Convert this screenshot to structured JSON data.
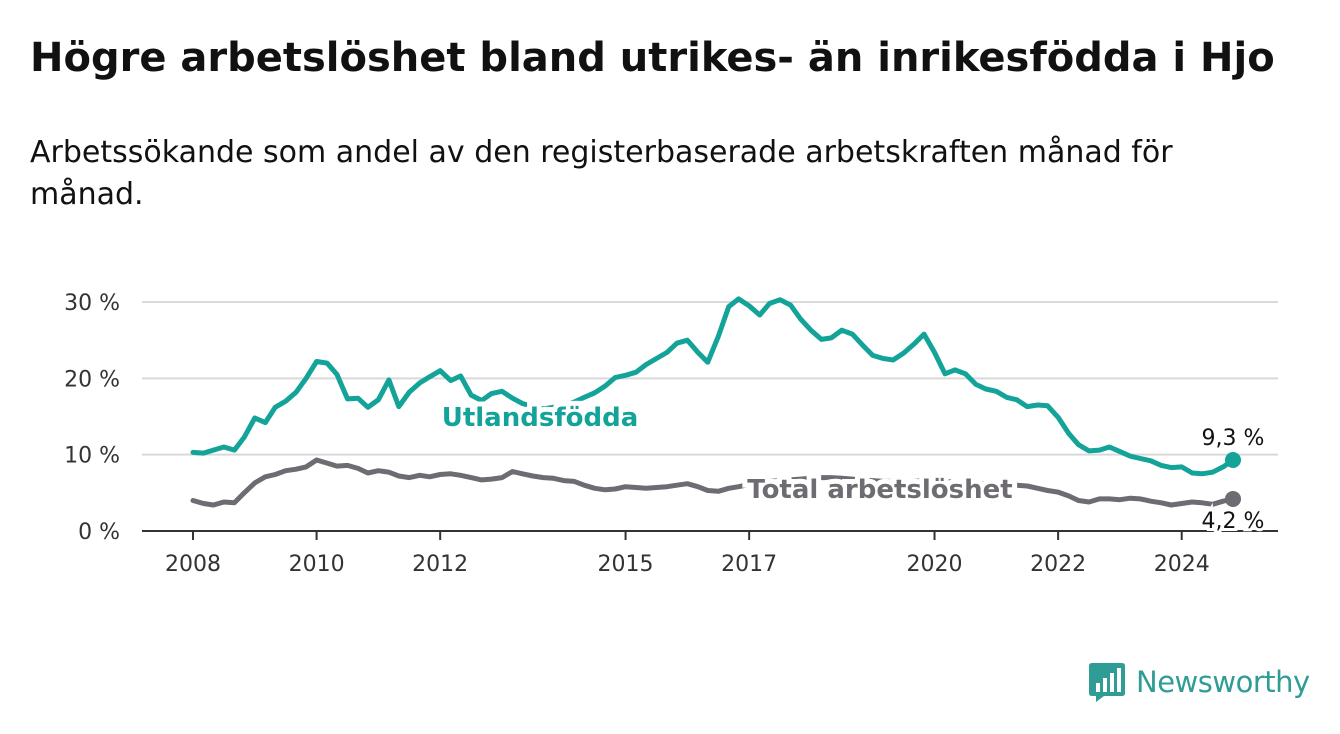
{
  "title": "Högre arbetslöshet bland utrikes- än inrikesfödda i Hjo",
  "subtitle": "Arbetssökande som andel av den registerbaserade arbetskraften månad för månad.",
  "brand": {
    "name": "Newsworthy",
    "color": "#2f9c96",
    "icon": "bar-chart-speech-icon"
  },
  "colors": {
    "foreign": "#13a399",
    "total": "#6e6b73",
    "grid": "#d9d9d9",
    "axis": "#333333"
  },
  "chart_data": {
    "type": "line",
    "title": "Högre arbetslöshet bland utrikes- än inrikesfödda i Hjo",
    "subtitle": "Arbetssökande som andel av den registerbaserade arbetskraften månad för månad.",
    "xlabel": "",
    "ylabel": "",
    "xlim": [
      2008,
      2025.75
    ],
    "ylim": [
      0,
      30
    ],
    "yticks": [
      0,
      10,
      20,
      30
    ],
    "ytick_labels": [
      "0 %",
      "10 %",
      "20 %",
      "30 %"
    ],
    "xticks": [
      2008,
      2010,
      2012,
      2015,
      2017,
      2020,
      2022,
      2024
    ],
    "xtick_labels": [
      "2008",
      "2010",
      "2012",
      "2015",
      "2017",
      "2020",
      "2022",
      "2024"
    ],
    "grid": "horizontal",
    "legend": "none (direct labels)",
    "series": [
      {
        "name": "Utlandsfödda",
        "color": "#13a399",
        "end_label": "9,3 %",
        "x": [
          2008.0,
          2008.17,
          2008.33,
          2008.5,
          2008.67,
          2008.83,
          2009.0,
          2009.17,
          2009.33,
          2009.5,
          2009.67,
          2009.83,
          2010.0,
          2010.17,
          2010.33,
          2010.5,
          2010.67,
          2010.83,
          2011.0,
          2011.17,
          2011.33,
          2011.5,
          2011.67,
          2011.83,
          2012.0,
          2012.17,
          2012.33,
          2012.5,
          2012.67,
          2012.83,
          2013.0,
          2013.17,
          2013.33,
          2013.5,
          2013.67,
          2013.83,
          2014.0,
          2014.17,
          2014.33,
          2014.5,
          2014.67,
          2014.83,
          2015.0,
          2015.17,
          2015.33,
          2015.5,
          2015.67,
          2015.83,
          2016.0,
          2016.17,
          2016.33,
          2016.5,
          2016.67,
          2016.83,
          2017.0,
          2017.17,
          2017.33,
          2017.5,
          2017.67,
          2017.83,
          2018.0,
          2018.17,
          2018.33,
          2018.5,
          2018.67,
          2018.83,
          2019.0,
          2019.17,
          2019.33,
          2019.5,
          2019.67,
          2019.83,
          2020.0,
          2020.17,
          2020.33,
          2020.5,
          2020.67,
          2020.83,
          2021.0,
          2021.17,
          2021.33,
          2021.5,
          2021.67,
          2021.83,
          2022.0,
          2022.17,
          2022.33,
          2022.5,
          2022.67,
          2022.83,
          2023.0,
          2023.17,
          2023.33,
          2023.5,
          2023.67,
          2023.83,
          2024.0,
          2024.17,
          2024.33,
          2024.5,
          2024.67,
          2024.83
        ],
        "values": [
          10.3,
          10.2,
          10.6,
          11.0,
          10.6,
          12.3,
          14.8,
          14.2,
          16.2,
          17.0,
          18.2,
          20.0,
          22.2,
          22.0,
          20.5,
          17.3,
          17.4,
          16.2,
          17.2,
          19.8,
          16.3,
          18.2,
          19.4,
          20.2,
          21.0,
          19.7,
          20.3,
          17.8,
          17.1,
          18.0,
          18.3,
          17.4,
          16.7,
          16.3,
          16.0,
          16.2,
          16.4,
          16.9,
          17.5,
          18.1,
          19.0,
          20.1,
          20.4,
          20.8,
          21.8,
          22.6,
          23.4,
          24.6,
          25.0,
          23.4,
          22.1,
          25.5,
          29.4,
          30.4,
          29.5,
          28.3,
          29.8,
          30.3,
          29.6,
          27.8,
          26.3,
          25.1,
          25.3,
          26.3,
          25.8,
          24.4,
          23.0,
          22.6,
          22.4,
          23.3,
          24.5,
          25.8,
          23.4,
          20.6,
          21.1,
          20.6,
          19.2,
          18.6,
          18.3,
          17.5,
          17.2,
          16.3,
          16.5,
          16.4,
          14.9,
          12.8,
          11.3,
          10.5,
          10.6,
          11.0,
          10.4,
          9.8,
          9.5,
          9.2,
          8.6,
          8.3,
          8.4,
          7.6,
          7.5,
          7.7,
          8.4,
          9.3
        ]
      },
      {
        "name": "Total arbetslöshet",
        "color": "#6e6b73",
        "end_label": "4,2 %",
        "x": [
          2008.0,
          2008.17,
          2008.33,
          2008.5,
          2008.67,
          2008.83,
          2009.0,
          2009.17,
          2009.33,
          2009.5,
          2009.67,
          2009.83,
          2010.0,
          2010.17,
          2010.33,
          2010.5,
          2010.67,
          2010.83,
          2011.0,
          2011.17,
          2011.33,
          2011.5,
          2011.67,
          2011.83,
          2012.0,
          2012.17,
          2012.33,
          2012.5,
          2012.67,
          2012.83,
          2013.0,
          2013.17,
          2013.33,
          2013.5,
          2013.67,
          2013.83,
          2014.0,
          2014.17,
          2014.33,
          2014.5,
          2014.67,
          2014.83,
          2015.0,
          2015.17,
          2015.33,
          2015.5,
          2015.67,
          2015.83,
          2016.0,
          2016.17,
          2016.33,
          2016.5,
          2016.67,
          2016.83,
          2017.0,
          2017.17,
          2017.33,
          2017.5,
          2017.67,
          2017.83,
          2018.0,
          2018.17,
          2018.33,
          2018.5,
          2018.67,
          2018.83,
          2019.0,
          2019.17,
          2019.33,
          2019.5,
          2019.67,
          2019.83,
          2020.0,
          2020.17,
          2020.33,
          2020.5,
          2020.67,
          2020.83,
          2021.0,
          2021.17,
          2021.33,
          2021.5,
          2021.67,
          2021.83,
          2022.0,
          2022.17,
          2022.33,
          2022.5,
          2022.67,
          2022.83,
          2023.0,
          2023.17,
          2023.33,
          2023.5,
          2023.67,
          2023.83,
          2024.0,
          2024.17,
          2024.33,
          2024.5,
          2024.67,
          2024.83
        ],
        "values": [
          4.0,
          3.6,
          3.4,
          3.8,
          3.7,
          5.0,
          6.3,
          7.1,
          7.4,
          7.9,
          8.1,
          8.4,
          9.3,
          8.9,
          8.5,
          8.6,
          8.2,
          7.6,
          7.9,
          7.7,
          7.2,
          7.0,
          7.3,
          7.1,
          7.4,
          7.5,
          7.3,
          7.0,
          6.7,
          6.8,
          7.0,
          7.8,
          7.5,
          7.2,
          7.0,
          6.9,
          6.6,
          6.5,
          6.0,
          5.6,
          5.4,
          5.5,
          5.8,
          5.7,
          5.6,
          5.7,
          5.8,
          6.0,
          6.2,
          5.8,
          5.3,
          5.2,
          5.6,
          5.8,
          6.1,
          6.3,
          6.5,
          6.6,
          6.7,
          6.8,
          6.9,
          7.0,
          7.0,
          6.9,
          6.8,
          6.7,
          6.6,
          6.5,
          6.5,
          6.4,
          6.5,
          6.6,
          6.6,
          6.5,
          6.4,
          6.3,
          6.3,
          6.2,
          6.2,
          6.1,
          6.0,
          5.9,
          5.6,
          5.3,
          5.1,
          4.6,
          4.0,
          3.8,
          4.2,
          4.2,
          4.1,
          4.3,
          4.2,
          3.9,
          3.7,
          3.4,
          3.6,
          3.8,
          3.7,
          3.5,
          3.9,
          4.2
        ]
      }
    ]
  }
}
